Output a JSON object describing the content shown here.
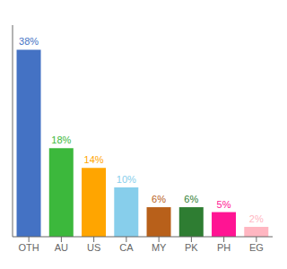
{
  "chart_data": {
    "type": "bar",
    "categories": [
      "OTH",
      "AU",
      "US",
      "CA",
      "MY",
      "PK",
      "PH",
      "EG"
    ],
    "values": [
      38,
      18,
      14,
      10,
      6,
      6,
      5,
      2
    ],
    "value_labels": [
      "38%",
      "18%",
      "14%",
      "10%",
      "6%",
      "6%",
      "5%",
      "2%"
    ],
    "colors": [
      "#4472C4",
      "#3CB83C",
      "#FFA500",
      "#87CEEB",
      "#B8601A",
      "#2E7D32",
      "#FF1493",
      "#FFB6C1"
    ],
    "ylim": [
      0,
      43
    ],
    "data_labels": true,
    "tick_labels": "x",
    "grid": false
  }
}
